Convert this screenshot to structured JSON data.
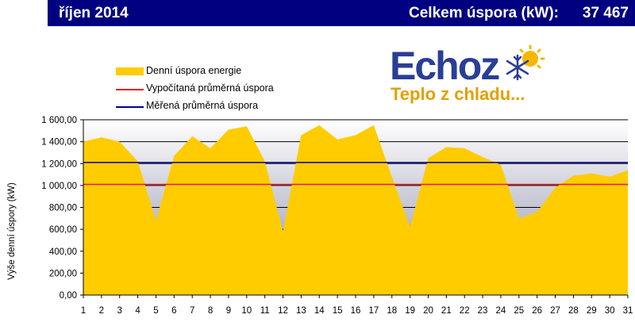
{
  "header": {
    "month": "říjen 2014",
    "total_label": "Celkem úspora (kW):",
    "total_value": "37 467"
  },
  "legend": {
    "items": [
      {
        "label": "Denní úspora energie",
        "kind": "area",
        "color": "#FFCC00"
      },
      {
        "label": "Vypočítaná průměrná úspora",
        "kind": "line",
        "color": "#E31B1B"
      },
      {
        "label": "Měřená průměrná úspora",
        "kind": "line",
        "color": "#000090"
      }
    ]
  },
  "logo": {
    "brand": "Echoz",
    "tagline": "Teplo z chladu...",
    "brand_color": "#2A3E96",
    "tagline_color": "#E2A000",
    "icons": [
      "sun-icon",
      "snowflake-icon"
    ]
  },
  "chart_data": {
    "type": "area",
    "ylabel": "Výše denní úspory (kW)",
    "xlabel": "",
    "x": [
      1,
      2,
      3,
      4,
      5,
      6,
      7,
      8,
      9,
      10,
      11,
      12,
      13,
      14,
      15,
      16,
      17,
      18,
      19,
      20,
      21,
      22,
      23,
      24,
      25,
      26,
      27,
      28,
      29,
      30,
      31
    ],
    "series": [
      {
        "name": "Denní úspora energie",
        "color": "#FFCC00",
        "values": [
          1400,
          1440,
          1400,
          1220,
          680,
          1270,
          1450,
          1340,
          1510,
          1540,
          1220,
          580,
          1460,
          1550,
          1420,
          1460,
          1550,
          1080,
          620,
          1250,
          1350,
          1340,
          1260,
          1190,
          700,
          760,
          980,
          1090,
          1110,
          1080,
          1140
        ]
      }
    ],
    "reference_lines": [
      {
        "name": "Vypočítaná průměrná úspora",
        "value": 1010,
        "color": "#E31B1B"
      },
      {
        "name": "Měřená průměrná úspora",
        "value": 1210,
        "color": "#000090"
      }
    ],
    "ylim": [
      0,
      1600
    ],
    "yticks": [
      0,
      200,
      400,
      600,
      800,
      1000,
      1200,
      1400,
      1600
    ],
    "ytick_labels": [
      "0,00",
      "200,00",
      "400,00",
      "600,00",
      "800,00",
      "1 000,00",
      "1 200,00",
      "1 400,00",
      "1 600,00"
    ],
    "grid": true,
    "legend_position": "top-left"
  }
}
